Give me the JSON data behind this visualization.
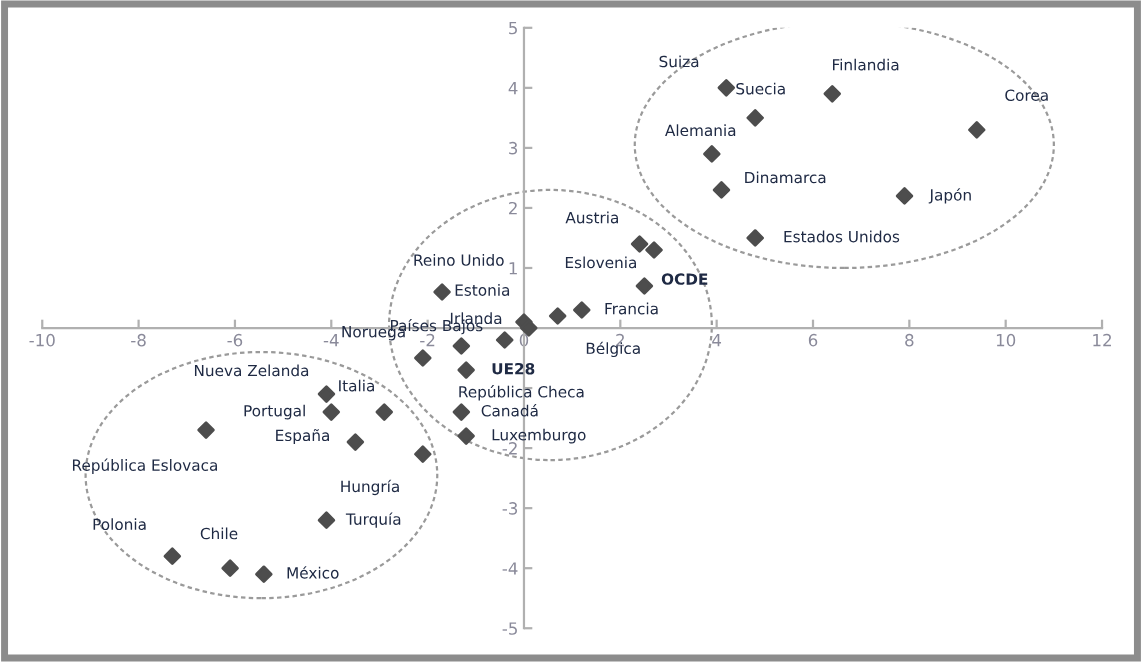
{
  "chart_data": {
    "type": "scatter",
    "x": [
      4.2,
      4.8,
      6.4,
      9.4,
      3.9,
      4.1,
      7.9,
      4.8,
      2.4,
      2.7,
      2.5,
      1.2,
      0.7,
      0.0,
      0.1,
      -1.7,
      -1.3,
      -0.4,
      -2.1,
      -1.2,
      -1.3,
      -1.2,
      -4.1,
      -2.9,
      -4.0,
      -6.6,
      -3.5,
      -2.1,
      -4.1,
      -7.3,
      -6.1,
      -5.4
    ],
    "values": [
      4.0,
      3.5,
      3.9,
      3.3,
      2.9,
      2.3,
      2.2,
      1.5,
      1.4,
      1.3,
      0.7,
      0.3,
      0.2,
      0.1,
      0.0,
      0.6,
      -0.3,
      -0.2,
      -0.5,
      -0.7,
      -1.4,
      -1.8,
      -1.1,
      -1.4,
      -1.4,
      -1.7,
      -1.9,
      -2.1,
      -3.2,
      -3.8,
      -4.0,
      -4.1
    ],
    "color": "#4d4d4d",
    "marker": "diamond",
    "annotations": [
      {
        "text": "Suiza",
        "x": 4.2,
        "y": 4.0
      },
      {
        "text": "Suecia",
        "x": 4.8,
        "y": 3.5
      },
      {
        "text": "Finlandia",
        "x": 6.4,
        "y": 3.9
      },
      {
        "text": "Corea",
        "x": 9.4,
        "y": 3.3
      },
      {
        "text": "Alemania",
        "x": 3.9,
        "y": 2.9
      },
      {
        "text": "Dinamarca",
        "x": 4.1,
        "y": 2.3
      },
      {
        "text": "Japón",
        "x": 7.9,
        "y": 2.2
      },
      {
        "text": "Estados Unidos",
        "x": 4.8,
        "y": 1.5
      },
      {
        "text": "Austria",
        "x": 2.4,
        "y": 1.4
      },
      {
        "text": "Eslovenia",
        "x": 2.7,
        "y": 1.3
      },
      {
        "text": "OCDE",
        "x": 2.5,
        "y": 0.7
      },
      {
        "text": "Francia",
        "x": 1.2,
        "y": 0.3
      },
      {
        "text": "Bélgica",
        "x": 0.7,
        "y": 0.2
      },
      {
        "text": "Estonia",
        "x": 0.0,
        "y": 0.1
      },
      {
        "text": "Irlanda",
        "x": 0.1,
        "y": 0.0
      },
      {
        "text": "Reino Unido",
        "x": -1.7,
        "y": 0.6
      },
      {
        "text": "Países Bajos",
        "x": -1.3,
        "y": -0.3
      },
      {
        "text": "República Checa",
        "x": -0.4,
        "y": -0.2
      },
      {
        "text": "Noruega",
        "x": -2.1,
        "y": -0.5
      },
      {
        "text": "UE28",
        "x": -1.2,
        "y": -0.7
      },
      {
        "text": "Canadá",
        "x": -1.3,
        "y": -1.4
      },
      {
        "text": "Luxemburgo",
        "x": -1.2,
        "y": -1.8
      },
      {
        "text": "Nueva Zelanda",
        "x": -4.1,
        "y": -1.1
      },
      {
        "text": "Italia",
        "x": -2.9,
        "y": -1.4
      },
      {
        "text": "Portugal",
        "x": -4.0,
        "y": -1.4
      },
      {
        "text": "República Eslovaca",
        "x": -6.6,
        "y": -1.7
      },
      {
        "text": "España",
        "x": -3.5,
        "y": -1.9
      },
      {
        "text": "Hungría",
        "x": -2.1,
        "y": -2.1
      },
      {
        "text": "Turquía",
        "x": -4.1,
        "y": -3.2
      },
      {
        "text": "Polonia",
        "x": -7.3,
        "y": -3.8
      },
      {
        "text": "Chile",
        "x": -6.1,
        "y": -4.0
      },
      {
        "text": "México",
        "x": -5.4,
        "y": -4.1
      }
    ],
    "xlim": [
      -10,
      12
    ],
    "ylim": [
      -5,
      5
    ],
    "xticks": [
      -10,
      -8,
      -6,
      -4,
      -2,
      0,
      2,
      4,
      6,
      8,
      10,
      12
    ],
    "yticks": [
      -5,
      -4,
      -3,
      -2,
      {
        "value": -1,
        "label": null
      },
      {
        "value": 0,
        "label": null
      },
      1,
      2,
      3,
      4,
      5
    ],
    "grid": false,
    "legend": false
  }
}
